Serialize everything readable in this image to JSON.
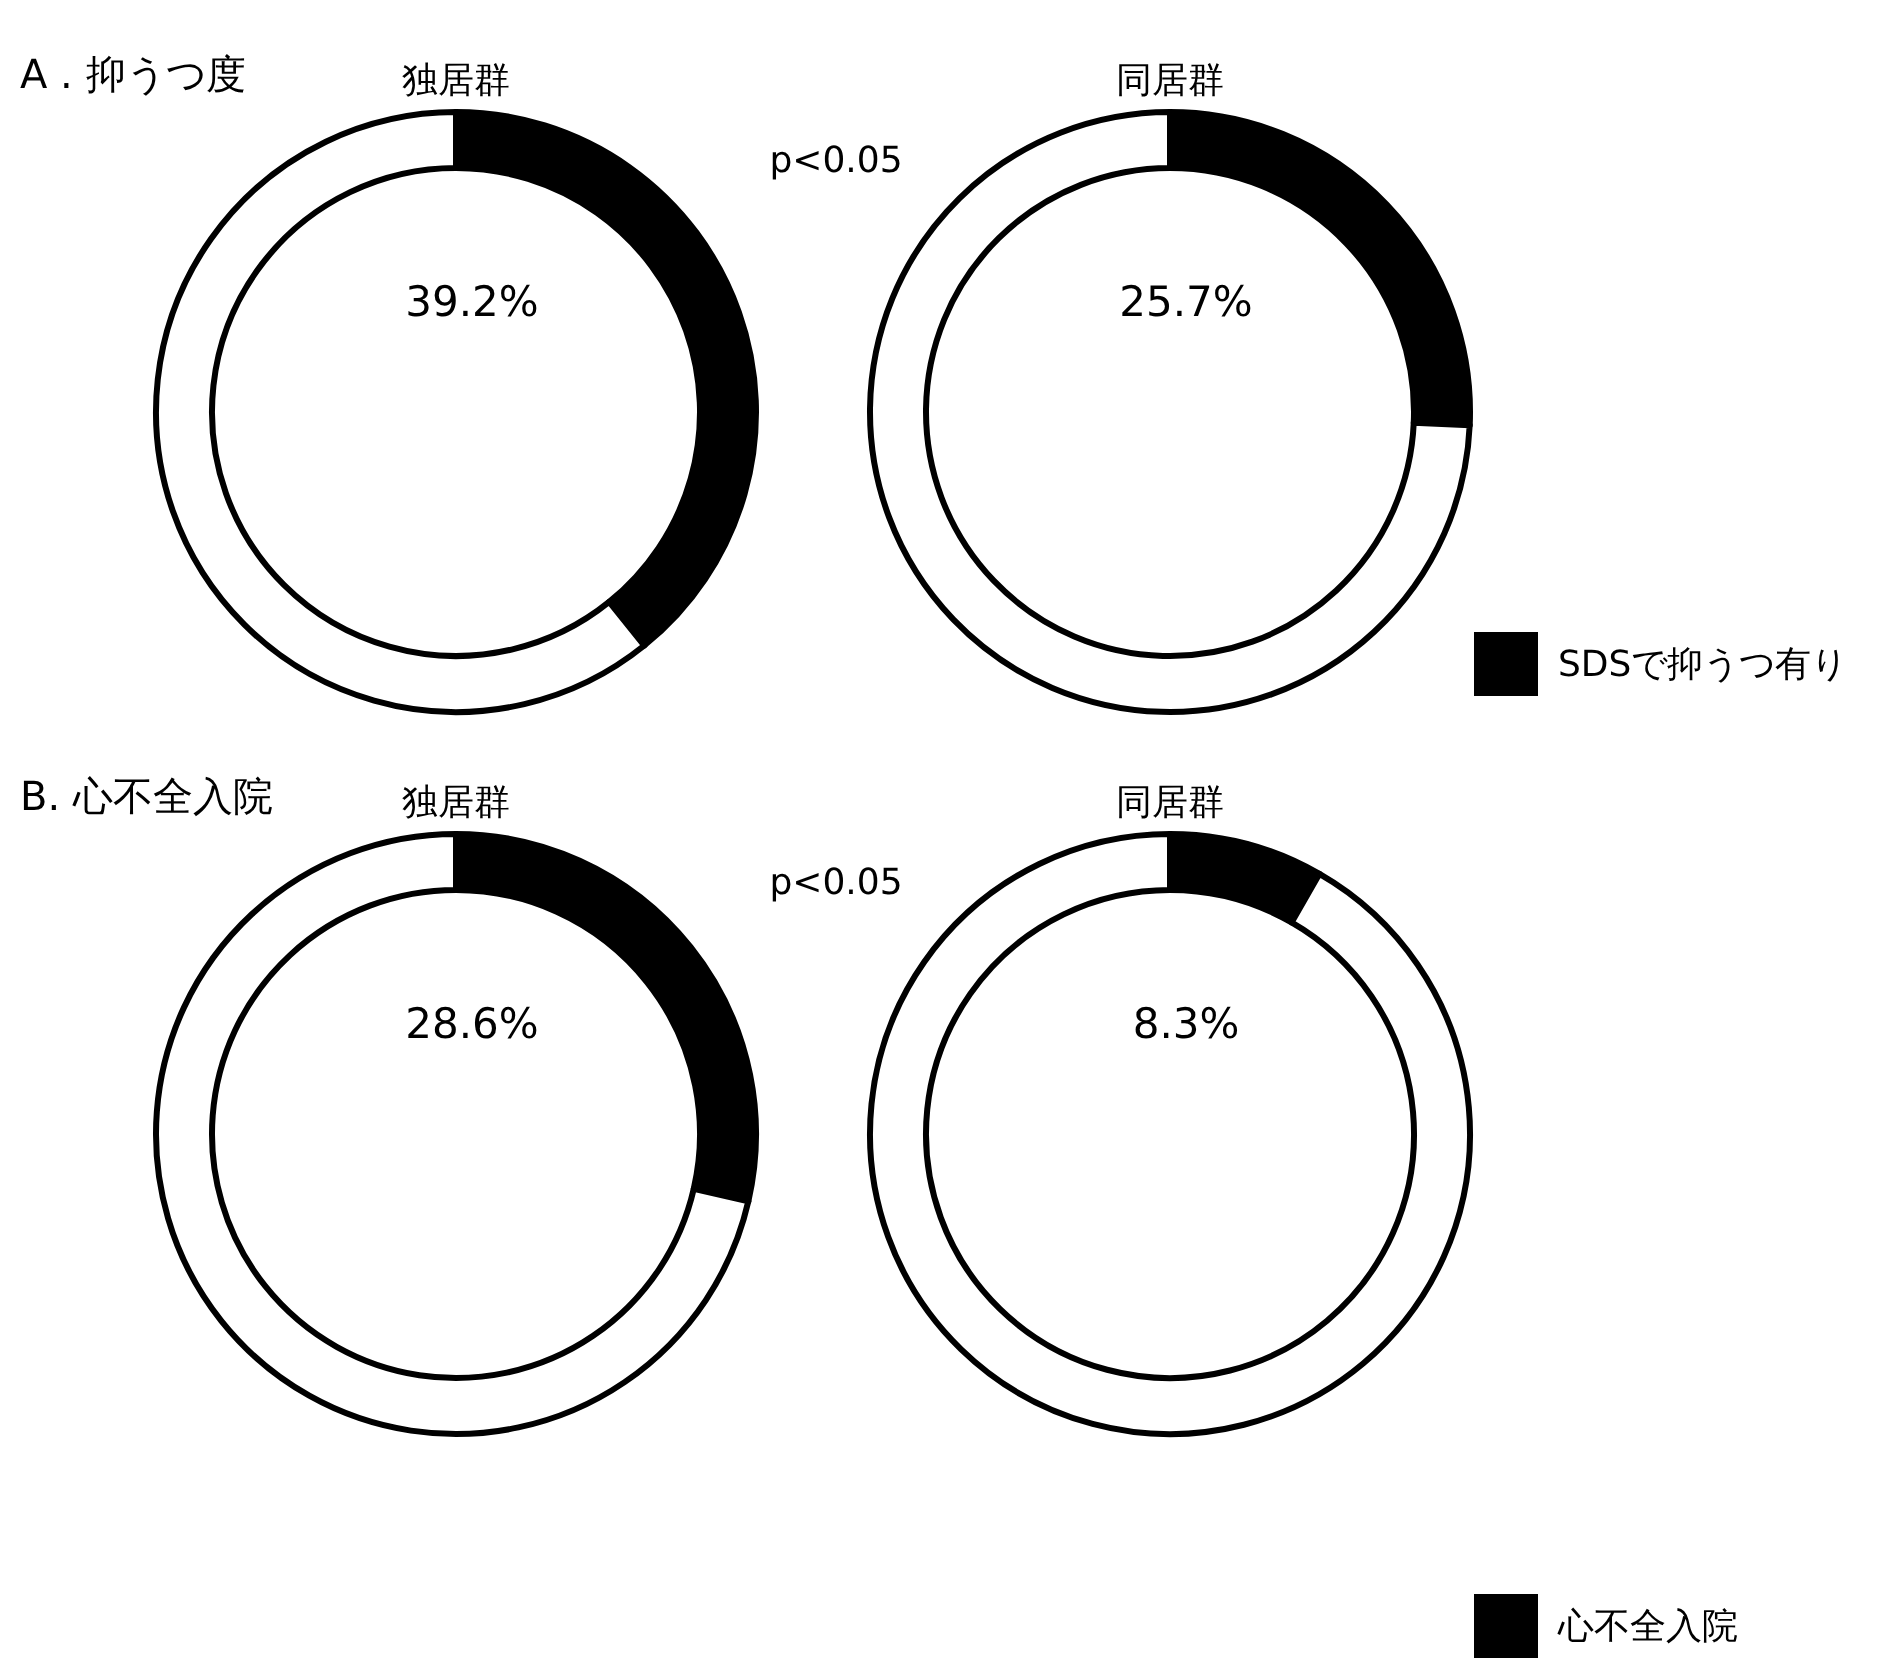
{
  "chart_data": [
    {
      "type": "donut",
      "title": "独居群",
      "categories": [
        null,
        null
      ],
      "values": [
        39.2,
        60.8
      ],
      "colors": [
        "#000000",
        "#ffffff"
      ],
      "value_labels": [
        "39.2%",
        null
      ],
      "annotations": [
        "A . 抑うつ度",
        "p<0.05"
      ]
    },
    {
      "type": "donut",
      "title": "同居群",
      "categories": [
        "SDSで抑うつ有り",
        null
      ],
      "values": [
        25.7,
        74.3
      ],
      "colors": [
        "#000000",
        "#ffffff"
      ],
      "value_labels": [
        "25.7%",
        null
      ],
      "legend": "bottom right"
    },
    {
      "type": "donut",
      "title": "独居群",
      "categories": [
        null,
        null
      ],
      "values": [
        28.6,
        71.4
      ],
      "colors": [
        "#000000",
        "#ffffff"
      ],
      "value_labels": [
        "28.6%",
        null
      ],
      "annotations": [
        "B. 心不全入院",
        "p<0.05"
      ]
    },
    {
      "type": "donut",
      "title": "同居群",
      "categories": [
        "心不全入院",
        null
      ],
      "values": [
        8.3,
        91.7
      ],
      "colors": [
        "#000000",
        "#ffffff"
      ],
      "value_labels": [
        "8.3%",
        null
      ],
      "legend": "bottom right"
    }
  ]
}
